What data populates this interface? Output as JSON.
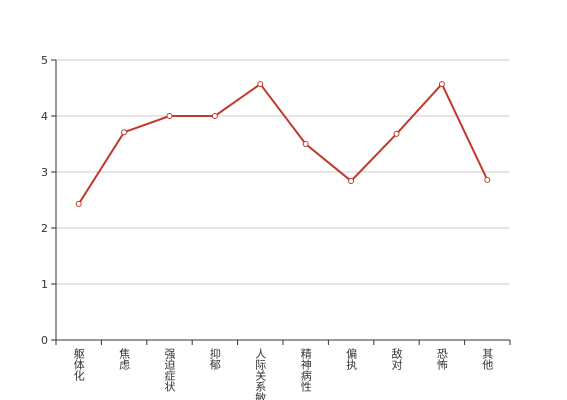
{
  "chart_data": {
    "type": "line",
    "categories": [
      "躯体化",
      "焦虑",
      "强迫症状",
      "抑郁",
      "人际关系敏感",
      "精神病性",
      "偏执",
      "敌对",
      "恐怖",
      "其他"
    ],
    "values": [
      2.43,
      3.71,
      4.0,
      4.0,
      4.57,
      3.5,
      2.84,
      3.68,
      4.57,
      2.86
    ],
    "color": "#c0392b",
    "ylim": [
      0,
      5
    ],
    "yticks": [
      0,
      1,
      2,
      3,
      4,
      5
    ],
    "grid": true
  }
}
